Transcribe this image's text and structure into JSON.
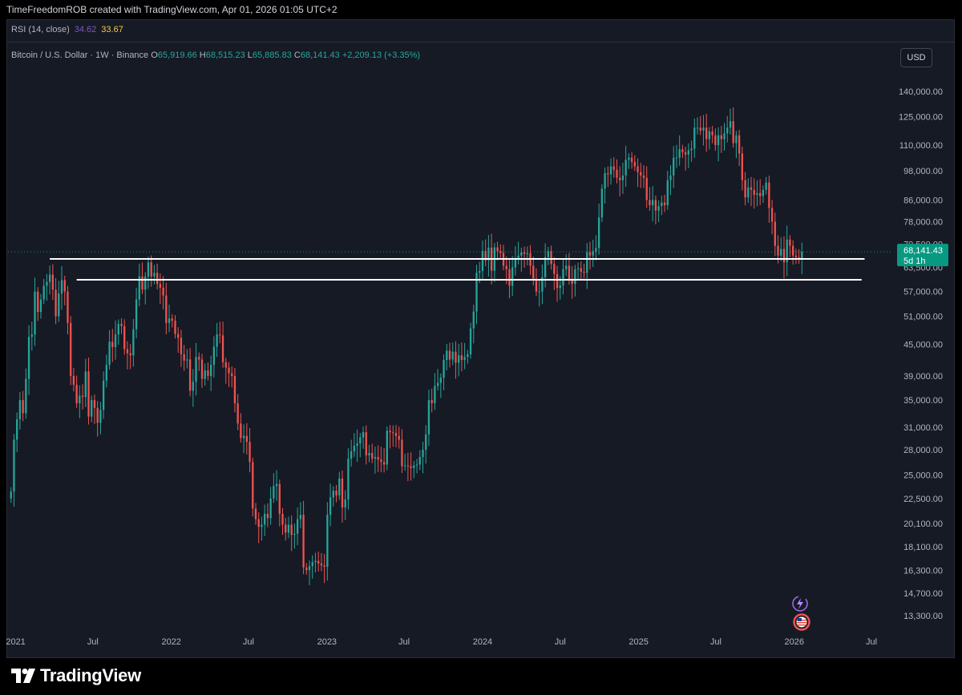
{
  "header": {
    "attribution": "TimeFreedomROB created with TradingView.com, Apr 01, 2026 01:05 UTC+2"
  },
  "indicator": {
    "label": "RSI (14, close)",
    "value1": "34.62",
    "value2": "33.67",
    "value1_color": "#7e57c2",
    "value2_color": "#f7c948"
  },
  "symbol": {
    "title": "Bitcoin / U.S. Dollar · 1W · Binance",
    "o_label": "O",
    "o_value": "65,919.66",
    "h_label": "H",
    "h_value": "68,515.23",
    "l_label": "L",
    "l_value": "65,885.83",
    "c_label": "C",
    "c_value": "68,141.43",
    "change": "+2,209.13 (+3.35%)"
  },
  "currency_button": "USD",
  "price_badge": {
    "price": "68,141.43",
    "countdown": "5d 1h",
    "color": "#089981"
  },
  "brand": {
    "name": "TradingView"
  },
  "icons": [
    "tradingview-logo-icon",
    "lightning-icon",
    "us-flag-icon"
  ],
  "colors": {
    "up": "#26a69a",
    "down": "#ef5350",
    "background": "#161a25",
    "support_line": "#ffffff"
  },
  "chart_data": {
    "type": "candlestick",
    "symbol": "BTCUSD",
    "interval": "1W",
    "scale": "log",
    "ylim": [
      12500,
      150000
    ],
    "xlim": [
      "2020-12-14",
      "2026-08-17"
    ],
    "y_ticks": [
      "140,000.00",
      "125,000.00",
      "110,000.00",
      "98,000.00",
      "86,000.00",
      "78,000.00",
      "70,500.00",
      "63,500.00",
      "57,000.00",
      "51,000.00",
      "45,000.00",
      "39,000.00",
      "35,000.00",
      "31,000.00",
      "28,000.00",
      "25,000.00",
      "22,500.00",
      "20,100.00",
      "18,100.00",
      "16,300.00",
      "14,700.00",
      "13,300.00"
    ],
    "y_tick_values": [
      140000,
      125000,
      110000,
      98000,
      86000,
      78000,
      70500,
      63500,
      57000,
      51000,
      45000,
      39000,
      35000,
      31000,
      28000,
      25000,
      22500,
      20100,
      18100,
      16300,
      14700,
      13300
    ],
    "x_ticks": [
      {
        "label": "2021",
        "date": "2021-01-01"
      },
      {
        "label": "Jul",
        "date": "2021-07-01"
      },
      {
        "label": "2022",
        "date": "2022-01-01"
      },
      {
        "label": "Jul",
        "date": "2022-07-01"
      },
      {
        "label": "2023",
        "date": "2023-01-01"
      },
      {
        "label": "Jul",
        "date": "2023-07-01"
      },
      {
        "label": "2024",
        "date": "2024-01-01"
      },
      {
        "label": "Jul",
        "date": "2024-07-01"
      },
      {
        "label": "2025",
        "date": "2025-01-01"
      },
      {
        "label": "Jul",
        "date": "2025-07-01"
      },
      {
        "label": "2026",
        "date": "2026-01-01"
      },
      {
        "label": "Jul",
        "date": "2026-07-01"
      }
    ],
    "first_candle_date": "2020-12-21",
    "candle_interval_days": 7,
    "closes": [
      23200,
      29300,
      32100,
      35000,
      33000,
      38500,
      46500,
      47000,
      57000,
      52000,
      55000,
      58500,
      59500,
      61500,
      57500,
      51000,
      56500,
      60000,
      57000,
      49500,
      39000,
      37500,
      34500,
      35700,
      35500,
      39800,
      32500,
      35000,
      33800,
      31600,
      33500,
      38200,
      41000,
      45500,
      44400,
      47000,
      49300,
      48800,
      44000,
      43200,
      42800,
      48100,
      55000,
      61000,
      57500,
      61000,
      65000,
      61000,
      62000,
      59000,
      58000,
      56000,
      49500,
      50500,
      50000,
      47100,
      46300,
      43000,
      41800,
      42000,
      36500,
      38000,
      42500,
      42000,
      38500,
      40000,
      39000,
      41000,
      44500,
      47000,
      46800,
      41500,
      40500,
      39500,
      39000,
      34500,
      31500,
      29500,
      29800,
      29000,
      26500,
      21500,
      20500,
      19800,
      20000,
      21000,
      20600,
      22500,
      23800,
      24000,
      21000,
      20000,
      19300,
      20000,
      19100,
      19200,
      20500,
      20900,
      16500,
      16300,
      16600,
      16900,
      17000,
      16800,
      16650,
      16550,
      20900,
      22600,
      23300,
      22800,
      24600,
      21600,
      22400,
      26900,
      27800,
      28500,
      28800,
      29600,
      30300,
      27300,
      27600,
      26900,
      27100,
      26800,
      26500,
      26200,
      30500,
      30300,
      30200,
      29800,
      29300,
      26000,
      26100,
      26000,
      25800,
      26100,
      26200,
      27100,
      28000,
      30000,
      35000,
      34500,
      37300,
      37800,
      38700,
      41900,
      43700,
      42000,
      43500,
      41400,
      42800,
      41900,
      42500,
      43000,
      48300,
      52100,
      62000,
      62500,
      68400,
      65500,
      69400,
      62600,
      69500,
      68300,
      67800,
      64000,
      63000,
      58500,
      63500,
      66000,
      67000,
      68000,
      67500,
      67700,
      64000,
      60400,
      57000,
      57000,
      60800,
      66500,
      68300,
      64500,
      61700,
      57900,
      58600,
      63000,
      64000,
      60000,
      59000,
      63000,
      63300,
      62300,
      62000,
      68000,
      67000,
      68300,
      69300,
      79500,
      90500,
      97000,
      96500,
      100000,
      98500,
      95000,
      94000,
      96000,
      103000,
      104000,
      102000,
      100000,
      97500,
      96000,
      95000,
      86000,
      84000,
      86000,
      82000,
      83700,
      85000,
      84000,
      94000,
      96000,
      104000,
      104000,
      108000,
      106500,
      105500,
      107500,
      108300,
      119000,
      119000,
      117500,
      119000,
      113000,
      117000,
      115000,
      110000,
      115000,
      113000,
      116000,
      119000,
      122500,
      111000,
      115000,
      106000,
      94000,
      87000,
      91000,
      90000,
      88000,
      88700,
      87500,
      90000,
      93000,
      83000,
      78000,
      70000,
      67000,
      69000,
      65000,
      72000,
      70000,
      67000,
      66500,
      65900,
      68141
    ]
  },
  "support_lines": [
    {
      "price": 66000,
      "from": "2021-03-22",
      "to": "2026-06-15"
    },
    {
      "price": 60100,
      "from": "2021-05-24",
      "to": "2026-06-08"
    }
  ]
}
